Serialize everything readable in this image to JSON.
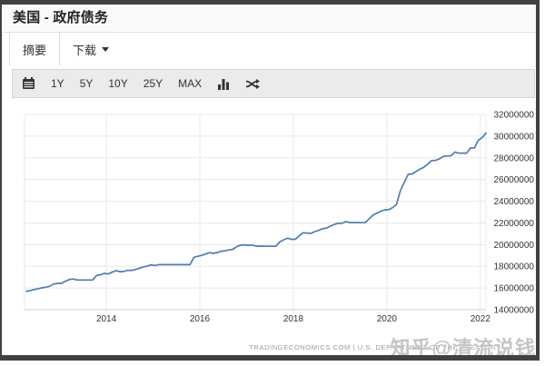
{
  "header": {
    "title": "美国 - 政府债务"
  },
  "tabs": [
    {
      "label": "摘要",
      "active": true
    },
    {
      "label": "下载",
      "active": false,
      "has_dropdown": true
    }
  ],
  "toolbar": {
    "ranges": [
      "1Y",
      "5Y",
      "10Y",
      "25Y",
      "MAX"
    ],
    "icons": [
      "calendar-icon",
      "bar-chart-icon",
      "shuffle-icon"
    ]
  },
  "footer": {
    "attribution": "TRADINGECONOMICS.COM | U.S. DEPARTMENT OF THE TREASURY",
    "watermark": "知乎@清流说钱"
  },
  "colors": {
    "line": "#4d7eae",
    "grid": "#e8e8e8",
    "axis": "#cccccc",
    "tick_text": "#333333",
    "toolbar_bg": "#ebebeb",
    "frame_border": "#414141"
  },
  "chart_data": {
    "type": "line",
    "title": "美国 - 政府债务",
    "xlabel": "",
    "ylabel": "",
    "x_ticks": [
      2014,
      2016,
      2018,
      2020,
      2022
    ],
    "y_ticks": [
      14000000,
      16000000,
      18000000,
      20000000,
      22000000,
      24000000,
      26000000,
      28000000,
      30000000,
      32000000
    ],
    "xlim": [
      2012.25,
      2022.12
    ],
    "ylim": [
      14000000,
      32000000
    ],
    "grid": true,
    "legend": false,
    "line_color": "#4d7eae",
    "x_start": 2012.29,
    "x_step_years": 0.083333,
    "values": [
      15690000,
      15770000,
      15860000,
      15930000,
      16020000,
      16070000,
      16160000,
      16370000,
      16430000,
      16430000,
      16620000,
      16770000,
      16830000,
      16740000,
      16740000,
      16740000,
      16740000,
      16740000,
      17160000,
      17220000,
      17350000,
      17290000,
      17460000,
      17600000,
      17510000,
      17520000,
      17630000,
      17620000,
      17710000,
      17820000,
      17940000,
      18010000,
      18140000,
      18080000,
      18150000,
      18150000,
      18150000,
      18150000,
      18150000,
      18150000,
      18150000,
      18150000,
      18150000,
      18830000,
      18920000,
      19010000,
      19130000,
      19260000,
      19190000,
      19270000,
      19380000,
      19430000,
      19510000,
      19570000,
      19810000,
      19950000,
      19980000,
      19940000,
      19960000,
      19850000,
      19850000,
      19850000,
      19840000,
      19840000,
      19840000,
      20240000,
      20440000,
      20590000,
      20490000,
      20490000,
      20800000,
      21090000,
      21070000,
      21030000,
      21200000,
      21310000,
      21460000,
      21520000,
      21700000,
      21850000,
      21970000,
      21960000,
      22120000,
      22030000,
      22030000,
      22030000,
      22020000,
      22020000,
      22400000,
      22720000,
      22910000,
      23080000,
      23200000,
      23220000,
      23410000,
      23700000,
      24970000,
      25750000,
      26480000,
      26520000,
      26730000,
      26950000,
      27130000,
      27400000,
      27750000,
      27760000,
      27900000,
      28130000,
      28170000,
      28190000,
      28530000,
      28430000,
      28430000,
      28430000,
      28910000,
      28910000,
      29620000,
      29870000,
      30290000
    ]
  }
}
